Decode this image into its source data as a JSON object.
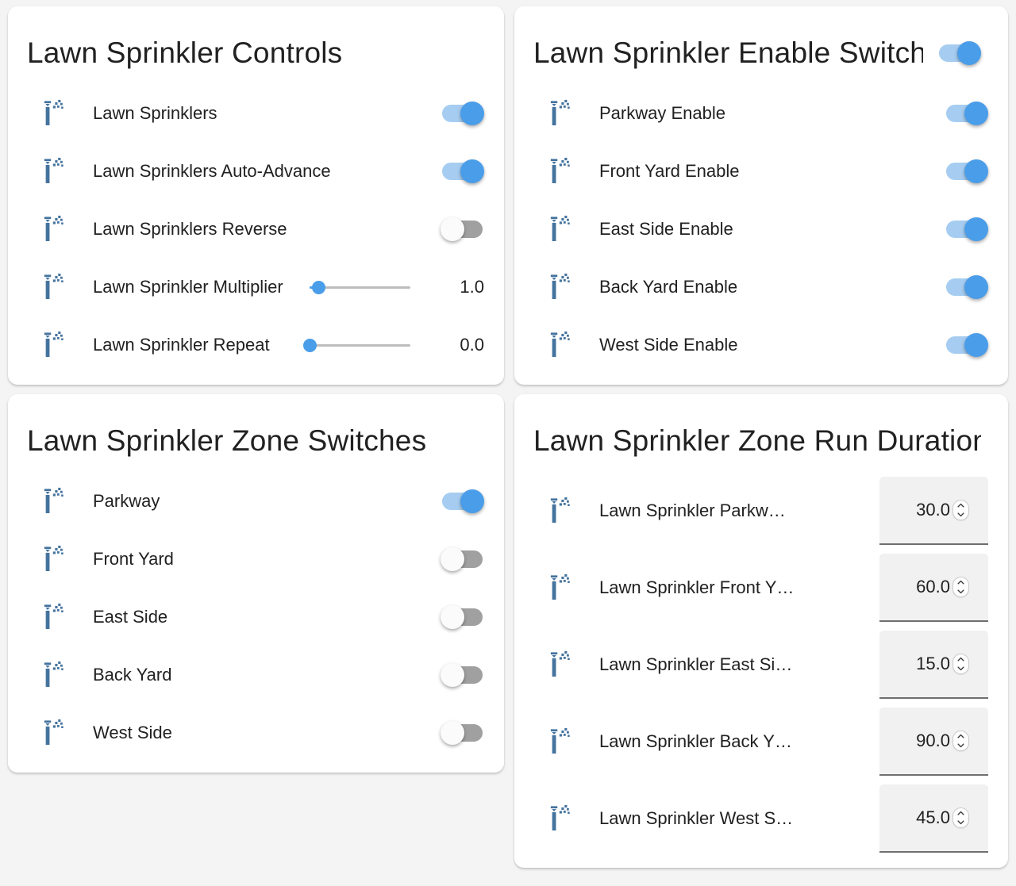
{
  "colors": {
    "page_background": "#f4f4f4",
    "card_background": "#ffffff",
    "icon_color": "#44739e",
    "accent_blue": "#4a9de9",
    "toggle_on_track": "#a6cdf1",
    "toggle_off_track": "#a0a0a0",
    "toggle_off_thumb": "#fbfbfb",
    "slider_track": "#bdbdbd",
    "number_field_background": "#f1f1f1",
    "text_color": "#212121"
  },
  "cards": [
    {
      "title": "Lawn Sprinkler Controls",
      "rows": [
        {
          "type": "toggle",
          "label": "Lawn Sprinklers",
          "state": "on"
        },
        {
          "type": "toggle",
          "label": "Lawn Sprinklers Auto-Advance",
          "state": "on"
        },
        {
          "type": "toggle",
          "label": "Lawn Sprinklers Reverse",
          "state": "off"
        },
        {
          "type": "slider",
          "label": "Lawn Sprinkler Multiplier",
          "value": "1.0",
          "percent": 9
        },
        {
          "type": "slider",
          "label": "Lawn Sprinkler Repeat",
          "value": "0.0",
          "percent": 0
        }
      ]
    },
    {
      "title": "Lawn Sprinkler Enable Switches",
      "header_toggle": "on",
      "rows": [
        {
          "type": "toggle",
          "label": "Parkway Enable",
          "state": "on"
        },
        {
          "type": "toggle",
          "label": "Front Yard Enable",
          "state": "on"
        },
        {
          "type": "toggle",
          "label": "East Side Enable",
          "state": "on"
        },
        {
          "type": "toggle",
          "label": "Back Yard Enable",
          "state": "on"
        },
        {
          "type": "toggle",
          "label": "West Side Enable",
          "state": "on"
        }
      ]
    },
    {
      "title": "Lawn Sprinkler Zone Switches",
      "rows": [
        {
          "type": "toggle",
          "label": "Parkway",
          "state": "on"
        },
        {
          "type": "toggle",
          "label": "Front Yard",
          "state": "off"
        },
        {
          "type": "toggle",
          "label": "East Side",
          "state": "off"
        },
        {
          "type": "toggle",
          "label": "Back Yard",
          "state": "off"
        },
        {
          "type": "toggle",
          "label": "West Side",
          "state": "off"
        }
      ]
    },
    {
      "title": "Lawn Sprinkler Zone Run Durations",
      "rows": [
        {
          "type": "number",
          "label": "Lawn Sprinkler Parkw…",
          "value": "30.0"
        },
        {
          "type": "number",
          "label": "Lawn Sprinkler Front Y…",
          "value": "60.0"
        },
        {
          "type": "number",
          "label": "Lawn Sprinkler East Si…",
          "value": "15.0"
        },
        {
          "type": "number",
          "label": "Lawn Sprinkler Back Y…",
          "value": "90.0"
        },
        {
          "type": "number",
          "label": "Lawn Sprinkler West S…",
          "value": "45.0"
        }
      ]
    }
  ]
}
